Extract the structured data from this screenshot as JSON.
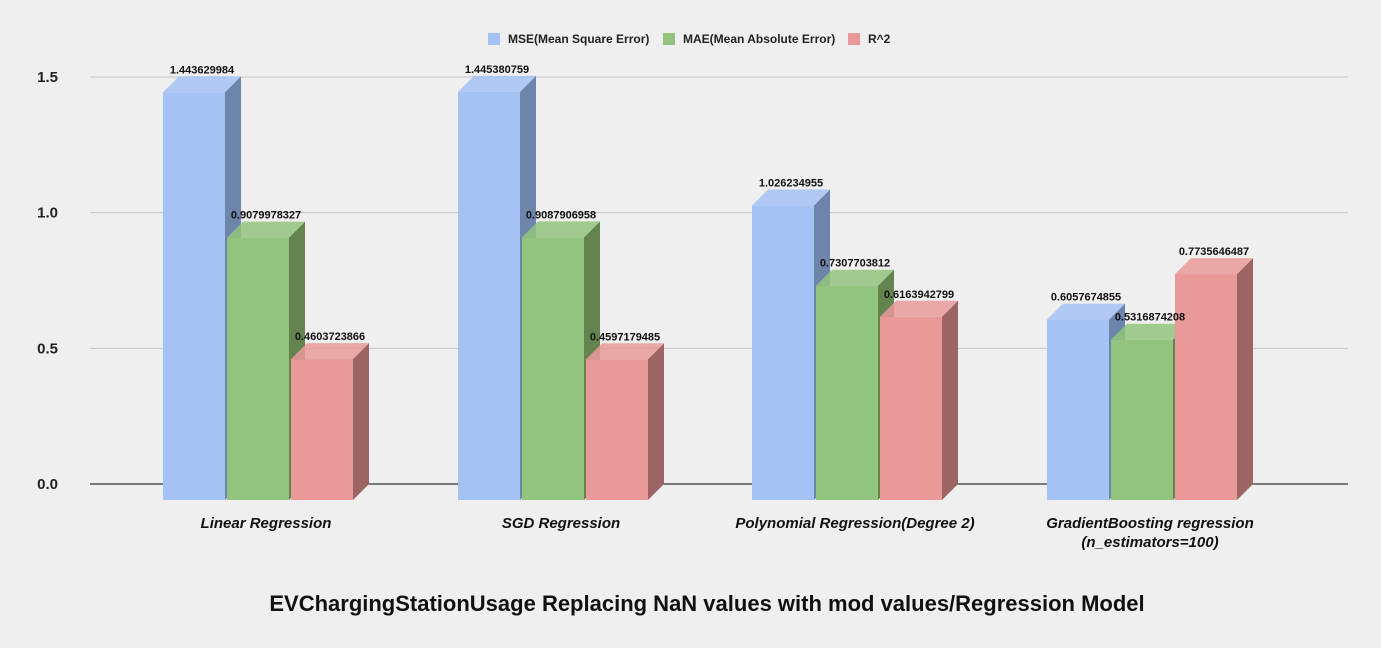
{
  "chart_data": {
    "type": "bar",
    "title": "EVChargingStationUsage Replacing NaN values with mod values/Regression Model",
    "xlabel": "",
    "ylabel": "",
    "ylim": [
      0,
      1.5
    ],
    "yticks": [
      "0.0",
      "0.5",
      "1.0",
      "1.5"
    ],
    "ytick_values": [
      0,
      0.5,
      1.0,
      1.5
    ],
    "legend_position": "top-center",
    "categories": [
      [
        "Linear Regression"
      ],
      [
        "SGD Regression"
      ],
      [
        "Polynomial Regression(Degree 2)"
      ],
      [
        "GradientBoosting regression",
        "(n_estimators=100)"
      ]
    ],
    "series": [
      {
        "name": "MSE(Mean Square Error)",
        "color": "#a4c2f4",
        "side_color": "#6d84ab",
        "values": [
          1.443629984,
          1.445380759,
          1.026234955,
          0.6057674855
        ],
        "labels": [
          "1.443629984",
          "1.445380759",
          "1.026234955",
          "0.6057674855"
        ]
      },
      {
        "name": "MAE(Mean Absolute Error)",
        "color": "#93c47d",
        "side_color": "#63834f",
        "values": [
          0.9079978327,
          0.9087906958,
          0.7307703812,
          0.5316874208
        ],
        "labels": [
          "0.9079978327",
          "0.9087906958",
          "0.7307703812",
          "0.5316874208"
        ]
      },
      {
        "name": "R^2",
        "color": "#ea9999",
        "side_color": "#9d6464",
        "values": [
          0.4603723866,
          0.4597179485,
          0.6163942799,
          0.7735646487
        ],
        "labels": [
          "0.4603723866",
          "0.4597179485",
          "0.6163942799",
          "0.7735646487"
        ]
      }
    ]
  }
}
